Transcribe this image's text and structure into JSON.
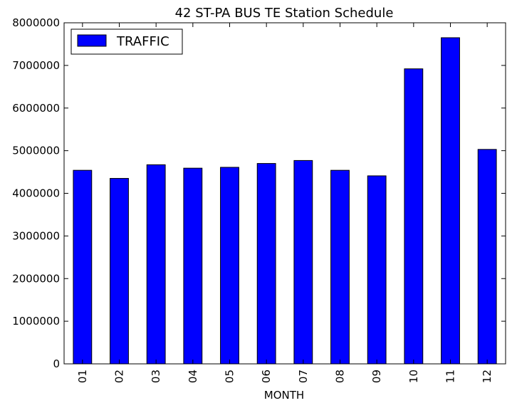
{
  "chart_data": {
    "type": "bar",
    "title": "42 ST-PA BUS TE Station Schedule",
    "xlabel": "MONTH",
    "ylabel": "",
    "categories": [
      "01",
      "02",
      "03",
      "04",
      "05",
      "06",
      "07",
      "08",
      "09",
      "10",
      "11",
      "12"
    ],
    "series": [
      {
        "name": "TRAFFIC",
        "color": "#0000ff",
        "values": [
          4540000,
          4350000,
          4670000,
          4590000,
          4610000,
          4700000,
          4770000,
          4540000,
          4410000,
          6920000,
          7650000,
          5030000
        ]
      }
    ],
    "ylim": [
      0,
      8000000
    ],
    "yticks": [
      "0",
      "1000000",
      "2000000",
      "3000000",
      "4000000",
      "5000000",
      "6000000",
      "7000000",
      "8000000"
    ],
    "grid": false,
    "legend": "top-left"
  }
}
